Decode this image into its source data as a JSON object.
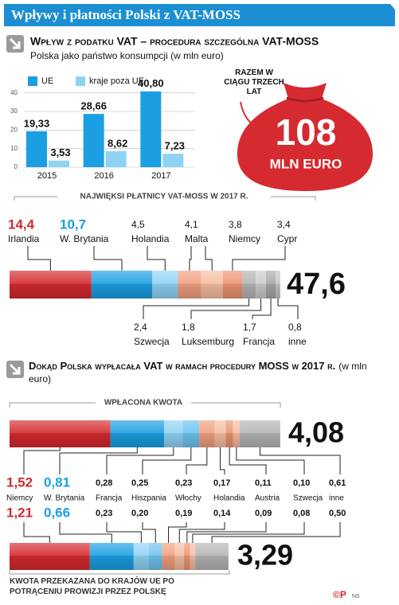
{
  "header": {
    "title": "Wpływy i płatności Polski z VAT-MOSS"
  },
  "chart_data": [
    {
      "type": "bar",
      "title": "Wpływ z podatku VAT – procedura szczególna VAT-MOSS",
      "subtitle": "Polska jako państwo konsumpcji (w mln euro)",
      "categories": [
        "2015",
        "2016",
        "2017"
      ],
      "series": [
        {
          "name": "UE",
          "color": "#1b9fe2",
          "values": [
            19.33,
            28.66,
            40.8
          ],
          "value_labels": [
            "19,33",
            "28,66",
            "40,80"
          ]
        },
        {
          "name": "kraje poza UE",
          "color": "#8fd3f4",
          "values": [
            3.53,
            8.62,
            7.23
          ],
          "value_labels": [
            "3,53",
            "8,62",
            "7,23"
          ]
        }
      ],
      "ylim": [
        0,
        45
      ],
      "yticks": [
        0,
        10,
        20,
        30,
        40
      ],
      "grid": true
    },
    {
      "type": "stacked_bar",
      "title": "NAJWIĘKSI PŁATNICY VAT-MOSS W 2017 R.",
      "categories": [
        "Irlandia",
        "W. Brytania",
        "Holandia",
        "Malta",
        "Niemcy",
        "Cypr",
        "Szwecja",
        "Luksemburg",
        "Francja",
        "inne"
      ],
      "values": [
        14.4,
        10.7,
        4.5,
        4.1,
        3.8,
        3.4,
        2.4,
        1.8,
        1.7,
        0.8
      ],
      "value_labels": [
        "14,4",
        "10,7",
        "4,5",
        "4,1",
        "3,8",
        "3,4",
        "2,4",
        "1,8",
        "1,7",
        "0,8"
      ],
      "colors": [
        "#d42a2e",
        "#1b9fe2",
        "#8fd3f4",
        "#f0a07f",
        "#f6bda2",
        "#ec9473",
        "#b5b5b5",
        "#cdcdcd",
        "#a8a8a8",
        "#c6c6c6"
      ],
      "total": {
        "value": 47.6,
        "label": "47,6"
      }
    },
    {
      "type": "stacked_bar",
      "title": "Dokąd Polska wypłacała VAT w ramach procedury MOSS w 2017 r.",
      "subtitle": "(w mln euro)",
      "categories": [
        "Niemcy",
        "W. Brytania",
        "Francja",
        "Hiszpania",
        "Włochy",
        "Holandia",
        "Austria",
        "Szwecja",
        "inne"
      ],
      "colors": [
        "#d42a2e",
        "#1b9fe2",
        "#8fd3f4",
        "#6fc3ee",
        "#f0a07f",
        "#f6bda2",
        "#ec9473",
        "#f6bda2",
        "#b5b5b5"
      ],
      "series": [
        {
          "name": "WPŁACONA KWOTA",
          "values": [
            1.52,
            0.81,
            0.28,
            0.25,
            0.23,
            0.17,
            0.11,
            0.1,
            0.61
          ],
          "value_labels": [
            "1,52",
            "0,81",
            "0,28",
            "0,25",
            "0,23",
            "0,17",
            "0,11",
            "0,10",
            "0,61"
          ],
          "total": {
            "value": 4.08,
            "label": "4,08"
          }
        },
        {
          "name": "KWOTA PRZEKAZANA DO KRAJÓW UE PO POTRĄCENIU PROWIZJI PRZEZ POLSKĘ",
          "values": [
            1.21,
            0.66,
            0.23,
            0.2,
            0.19,
            0.14,
            0.09,
            0.08,
            0.5
          ],
          "value_labels": [
            "1,21",
            "0,66",
            "0,23",
            "0,20",
            "0,19",
            "0,14",
            "0,09",
            "0,08",
            "0,50"
          ],
          "total": {
            "value": 3.29,
            "label": "3,29"
          }
        }
      ]
    }
  ],
  "summary": {
    "label": "RAZEM W CIĄGU TRZECH LAT",
    "value": 108,
    "unit": "MLN EURO"
  },
  "credits": {
    "logo": "©P",
    "author": "NS"
  }
}
